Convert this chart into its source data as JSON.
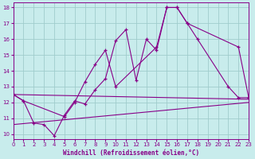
{
  "xlabel": "Windchill (Refroidissement éolien,°C)",
  "background_color": "#c8ecec",
  "grid_color": "#a0cccc",
  "line_color": "#880088",
  "x_ticks": [
    0,
    1,
    2,
    3,
    4,
    5,
    6,
    7,
    8,
    9,
    10,
    11,
    12,
    13,
    14,
    15,
    16,
    17,
    18,
    19,
    20,
    21,
    22,
    23
  ],
  "y_ticks": [
    10,
    11,
    12,
    13,
    14,
    15,
    16,
    17,
    18
  ],
  "xlim": [
    0,
    23
  ],
  "ylim": [
    9.7,
    18.3
  ],
  "series1_x": [
    0,
    1,
    2,
    3,
    4,
    5,
    6,
    7,
    8,
    9,
    10,
    11,
    12,
    13,
    14,
    15,
    16,
    17,
    22,
    23
  ],
  "series1_y": [
    12.5,
    12.1,
    10.7,
    10.6,
    9.9,
    11.2,
    12.1,
    11.9,
    12.8,
    13.5,
    15.9,
    16.6,
    13.4,
    16.0,
    15.3,
    18.0,
    18.0,
    17.0,
    15.5,
    12.3
  ],
  "series2_x": [
    0,
    1,
    5,
    6,
    7,
    8,
    9,
    10,
    14,
    15,
    16,
    17,
    18,
    21,
    22,
    23
  ],
  "series2_y": [
    12.5,
    12.1,
    11.1,
    12.0,
    13.3,
    14.4,
    15.3,
    13.0,
    15.5,
    18.0,
    18.0,
    17.0,
    16.0,
    13.0,
    12.3,
    12.3
  ],
  "trend1_x": [
    0,
    23
  ],
  "trend1_y": [
    12.5,
    12.2
  ],
  "trend2_x": [
    0,
    23
  ],
  "trend2_y": [
    10.6,
    12.0
  ]
}
